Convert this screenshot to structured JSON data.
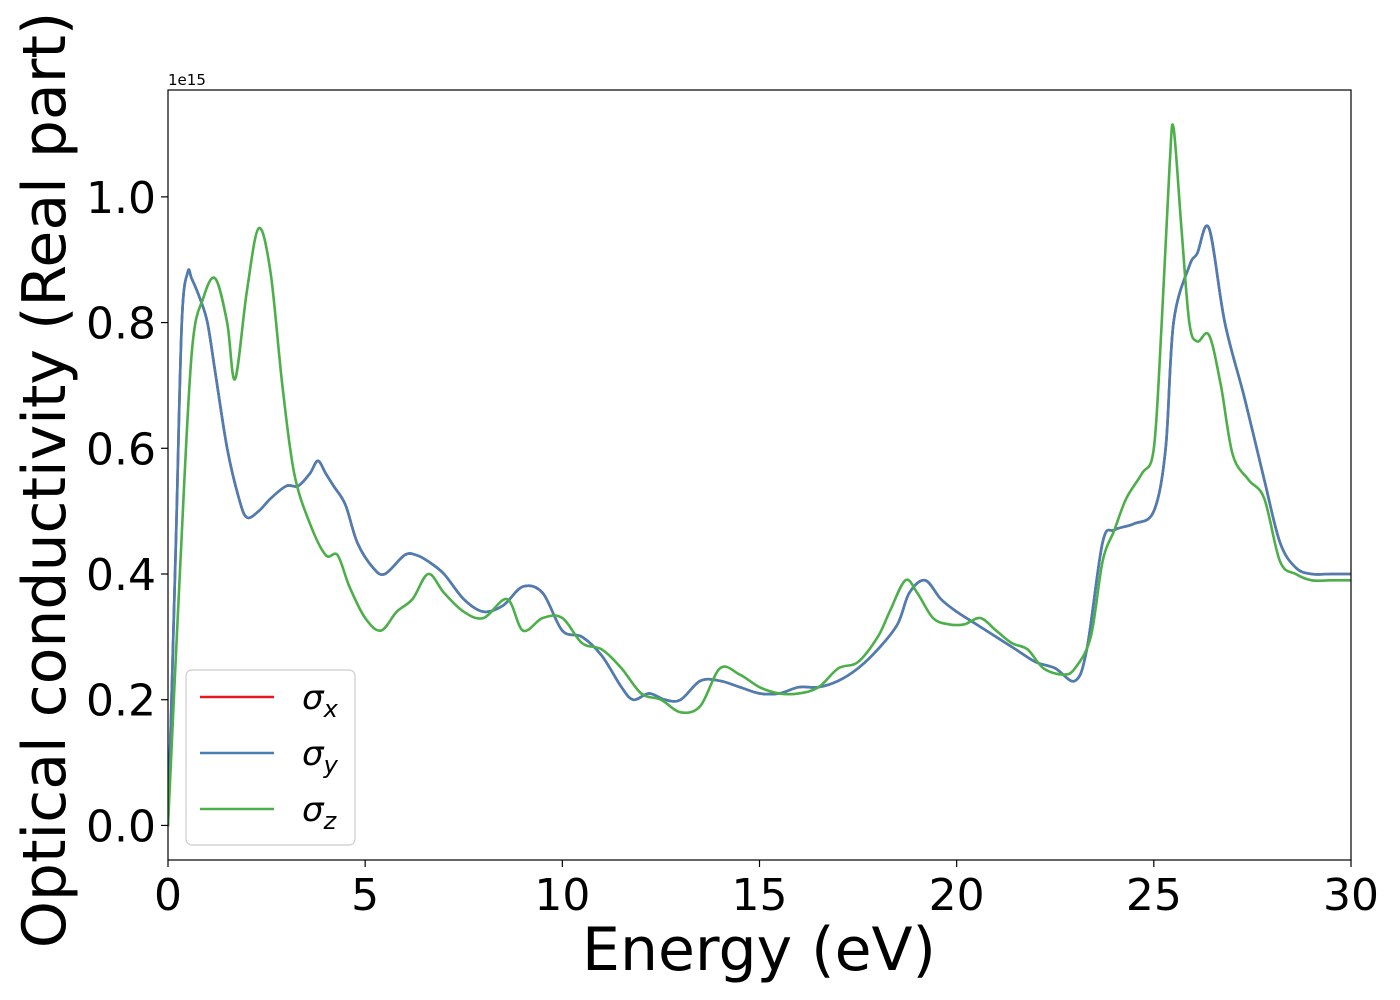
{
  "chart_data": {
    "type": "line",
    "xlabel": "Energy (eV)",
    "ylabel": "Optical conductivity (Real part)",
    "y_offset_text": "1e15",
    "xlim": [
      0,
      30
    ],
    "ylim": [
      -0.055,
      1.17
    ],
    "x_ticks": [
      0,
      5,
      10,
      15,
      20,
      25,
      30
    ],
    "y_ticks": [
      0.0,
      0.2,
      0.4,
      0.6,
      0.8,
      1.0
    ],
    "y_tick_labels": [
      "0.0",
      "0.2",
      "0.4",
      "0.6",
      "0.8",
      "1.0"
    ],
    "grid": false,
    "legend_position": "lower-left",
    "series": [
      {
        "name": "σx",
        "symbol": "σ",
        "subscript": "x",
        "color": "#e41a1c",
        "x": [
          0,
          0.2,
          0.35,
          0.5,
          0.6,
          0.8,
          1.0,
          1.2,
          1.5,
          1.8,
          2.0,
          2.3,
          2.6,
          3.0,
          3.3,
          3.6,
          3.8,
          4.0,
          4.2,
          4.5,
          4.8,
          5.2,
          5.5,
          6.0,
          6.3,
          6.6,
          7.0,
          7.5,
          8.0,
          8.5,
          9.0,
          9.5,
          10.0,
          10.5,
          11.0,
          11.5,
          11.8,
          12.2,
          12.6,
          13.0,
          13.5,
          14.0,
          14.5,
          15.0,
          15.5,
          16.0,
          16.5,
          17.0,
          17.5,
          18.0,
          18.5,
          18.8,
          19.2,
          19.6,
          20.0,
          20.5,
          21.0,
          21.5,
          22.0,
          22.5,
          23.0,
          23.3,
          23.7,
          24.0,
          24.5,
          25.0,
          25.3,
          25.5,
          25.9,
          26.1,
          26.4,
          26.8,
          27.3,
          27.8,
          28.2,
          28.6,
          29.0,
          29.5,
          30.0
        ],
        "y": [
          0.0,
          0.45,
          0.8,
          0.88,
          0.87,
          0.84,
          0.8,
          0.72,
          0.6,
          0.52,
          0.49,
          0.5,
          0.52,
          0.54,
          0.54,
          0.56,
          0.58,
          0.56,
          0.54,
          0.51,
          0.45,
          0.41,
          0.4,
          0.43,
          0.43,
          0.42,
          0.4,
          0.36,
          0.34,
          0.35,
          0.38,
          0.37,
          0.31,
          0.3,
          0.27,
          0.22,
          0.2,
          0.21,
          0.2,
          0.2,
          0.23,
          0.23,
          0.22,
          0.21,
          0.21,
          0.22,
          0.22,
          0.23,
          0.25,
          0.28,
          0.32,
          0.37,
          0.39,
          0.36,
          0.34,
          0.32,
          0.3,
          0.28,
          0.26,
          0.25,
          0.23,
          0.28,
          0.45,
          0.47,
          0.48,
          0.5,
          0.6,
          0.8,
          0.89,
          0.91,
          0.95,
          0.8,
          0.68,
          0.55,
          0.45,
          0.41,
          0.4,
          0.4,
          0.4
        ]
      },
      {
        "name": "σy",
        "symbol": "σ",
        "subscript": "y",
        "color": "#4a7fb5",
        "x": [
          0,
          0.2,
          0.35,
          0.5,
          0.6,
          0.8,
          1.0,
          1.2,
          1.5,
          1.8,
          2.0,
          2.3,
          2.6,
          3.0,
          3.3,
          3.6,
          3.8,
          4.0,
          4.2,
          4.5,
          4.8,
          5.2,
          5.5,
          6.0,
          6.3,
          6.6,
          7.0,
          7.5,
          8.0,
          8.5,
          9.0,
          9.5,
          10.0,
          10.5,
          11.0,
          11.5,
          11.8,
          12.2,
          12.6,
          13.0,
          13.5,
          14.0,
          14.5,
          15.0,
          15.5,
          16.0,
          16.5,
          17.0,
          17.5,
          18.0,
          18.5,
          18.8,
          19.2,
          19.6,
          20.0,
          20.5,
          21.0,
          21.5,
          22.0,
          22.5,
          23.0,
          23.3,
          23.7,
          24.0,
          24.5,
          25.0,
          25.3,
          25.5,
          25.9,
          26.1,
          26.4,
          26.8,
          27.3,
          27.8,
          28.2,
          28.6,
          29.0,
          29.5,
          30.0
        ],
        "y": [
          0.0,
          0.45,
          0.8,
          0.88,
          0.87,
          0.84,
          0.8,
          0.72,
          0.6,
          0.52,
          0.49,
          0.5,
          0.52,
          0.54,
          0.54,
          0.56,
          0.58,
          0.56,
          0.54,
          0.51,
          0.45,
          0.41,
          0.4,
          0.43,
          0.43,
          0.42,
          0.4,
          0.36,
          0.34,
          0.35,
          0.38,
          0.37,
          0.31,
          0.3,
          0.27,
          0.22,
          0.2,
          0.21,
          0.2,
          0.2,
          0.23,
          0.23,
          0.22,
          0.21,
          0.21,
          0.22,
          0.22,
          0.23,
          0.25,
          0.28,
          0.32,
          0.37,
          0.39,
          0.36,
          0.34,
          0.32,
          0.3,
          0.28,
          0.26,
          0.25,
          0.23,
          0.28,
          0.45,
          0.47,
          0.48,
          0.5,
          0.6,
          0.8,
          0.89,
          0.91,
          0.95,
          0.8,
          0.68,
          0.55,
          0.45,
          0.41,
          0.4,
          0.4,
          0.4
        ]
      },
      {
        "name": "σz",
        "symbol": "σ",
        "subscript": "z",
        "color": "#4daf4a",
        "x": [
          0,
          0.3,
          0.6,
          0.9,
          1.2,
          1.5,
          1.7,
          2.0,
          2.3,
          2.6,
          2.9,
          3.2,
          3.6,
          4.0,
          4.3,
          4.6,
          5.0,
          5.4,
          5.8,
          6.2,
          6.6,
          7.0,
          7.5,
          8.0,
          8.6,
          9.0,
          9.5,
          10.0,
          10.5,
          11.0,
          11.5,
          12.0,
          12.5,
          13.0,
          13.5,
          14.0,
          14.5,
          15.0,
          15.5,
          16.0,
          16.5,
          17.0,
          17.5,
          18.0,
          18.3,
          18.7,
          19.0,
          19.4,
          19.8,
          20.2,
          20.6,
          21.0,
          21.4,
          21.8,
          22.2,
          22.7,
          23.0,
          23.4,
          23.7,
          24.0,
          24.3,
          24.7,
          25.0,
          25.2,
          25.4,
          25.5,
          25.7,
          25.9,
          26.1,
          26.4,
          26.7,
          27.0,
          27.4,
          27.8,
          28.2,
          28.6,
          29.0,
          29.5,
          30.0
        ],
        "y": [
          0.0,
          0.4,
          0.75,
          0.84,
          0.87,
          0.8,
          0.71,
          0.85,
          0.95,
          0.88,
          0.7,
          0.56,
          0.48,
          0.43,
          0.43,
          0.38,
          0.33,
          0.31,
          0.34,
          0.36,
          0.4,
          0.37,
          0.34,
          0.33,
          0.36,
          0.31,
          0.33,
          0.33,
          0.29,
          0.28,
          0.25,
          0.21,
          0.2,
          0.18,
          0.19,
          0.25,
          0.24,
          0.22,
          0.21,
          0.21,
          0.22,
          0.25,
          0.26,
          0.3,
          0.34,
          0.39,
          0.37,
          0.33,
          0.32,
          0.32,
          0.33,
          0.31,
          0.29,
          0.28,
          0.25,
          0.24,
          0.25,
          0.3,
          0.42,
          0.47,
          0.52,
          0.56,
          0.6,
          0.8,
          1.05,
          1.11,
          0.95,
          0.8,
          0.77,
          0.78,
          0.7,
          0.59,
          0.55,
          0.52,
          0.42,
          0.4,
          0.39,
          0.39,
          0.39
        ]
      }
    ]
  }
}
